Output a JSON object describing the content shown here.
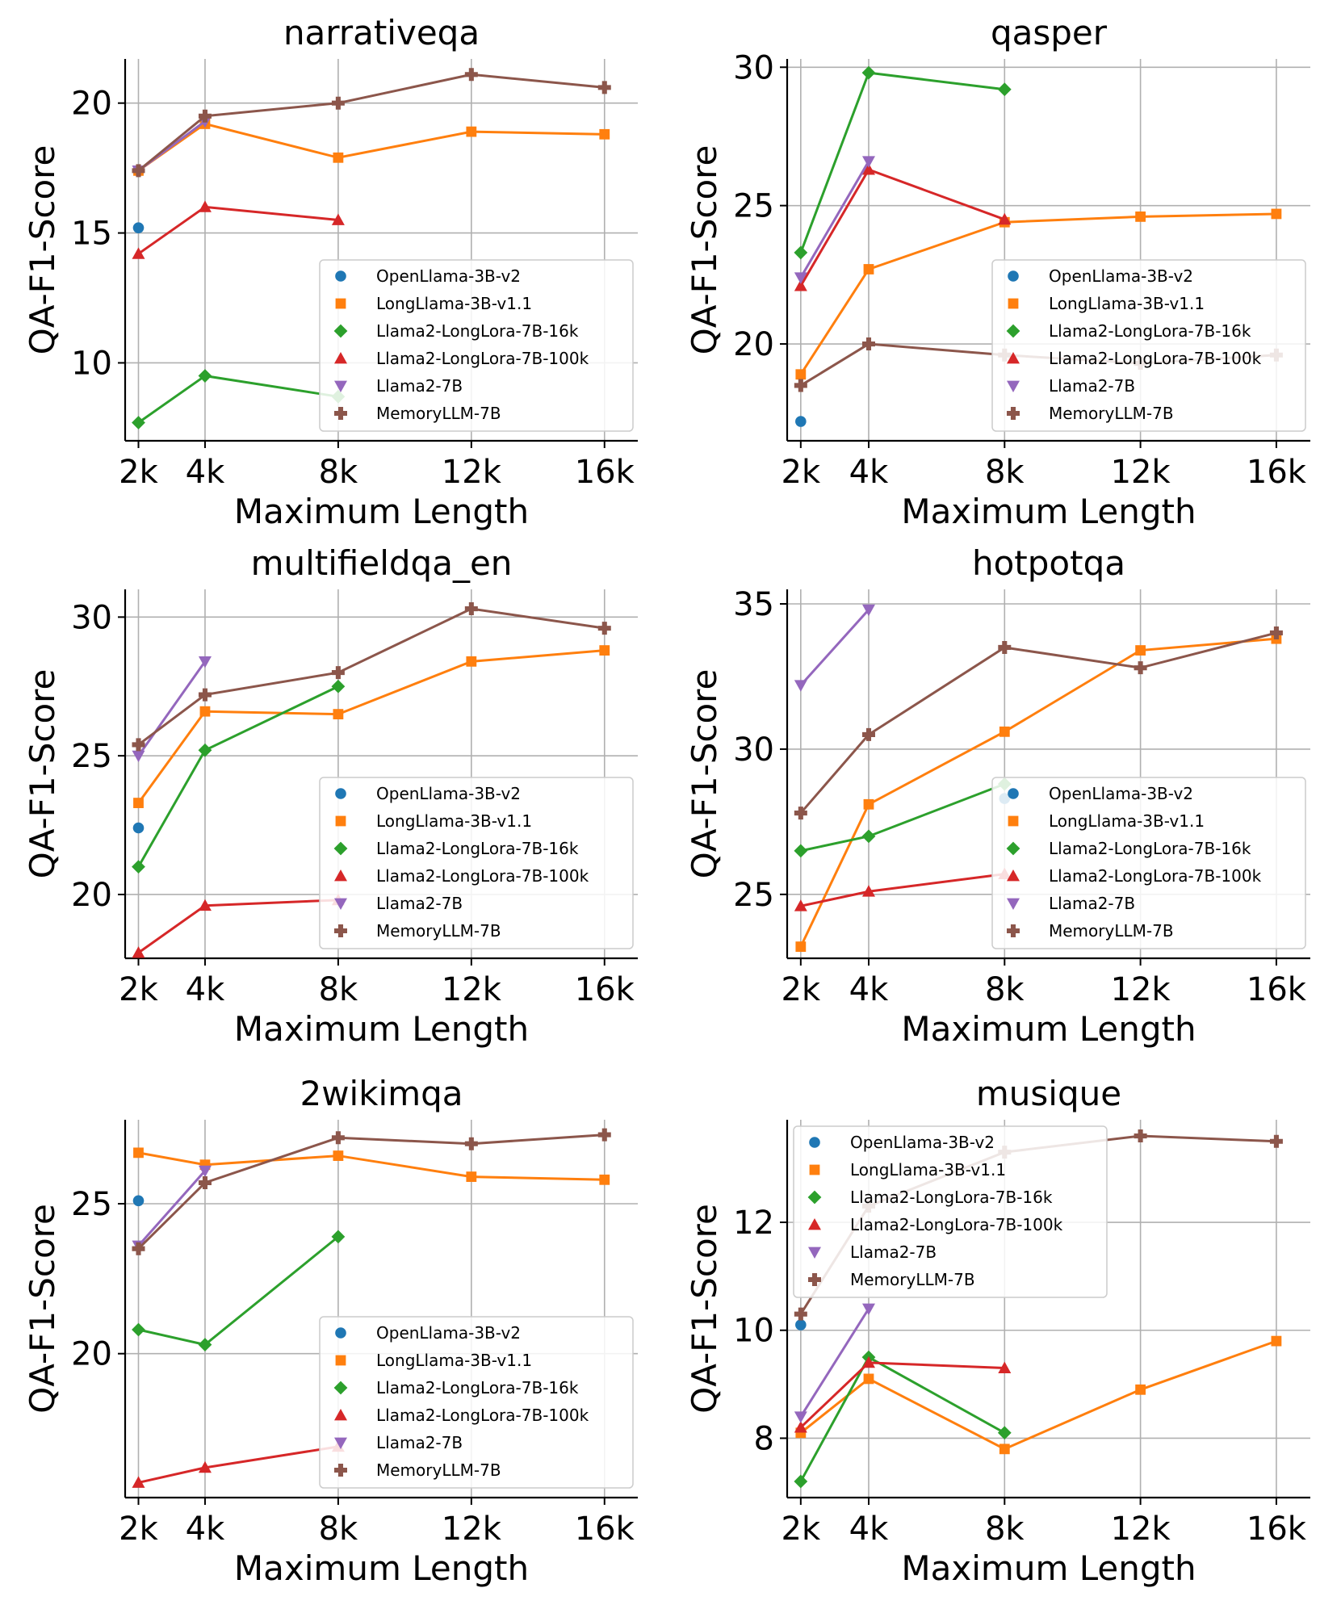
{
  "series_styles": [
    {
      "name": "OpenLlama-3B-v2",
      "color": "#1f77b4",
      "marker": "circle"
    },
    {
      "name": "LongLlama-3B-v1.1",
      "color": "#ff7f0e",
      "marker": "square"
    },
    {
      "name": "Llama2-LongLora-7B-16k",
      "color": "#2ca02c",
      "marker": "diamond"
    },
    {
      "name": "Llama2-LongLora-7B-100k",
      "color": "#d62728",
      "marker": "triangle-up"
    },
    {
      "name": "Llama2-7B",
      "color": "#9467bd",
      "marker": "triangle-down"
    },
    {
      "name": "MemoryLLM-7B",
      "color": "#8c564b",
      "marker": "plus"
    }
  ],
  "chart_data": [
    {
      "type": "line",
      "title": "narrativeqa",
      "xlabel": "Maximum Length",
      "ylabel": "QA-F1-Score",
      "xticks": [
        "2k",
        "4k",
        "8k",
        "12k",
        "16k"
      ],
      "xtick_values": [
        2,
        4,
        8,
        12,
        16
      ],
      "ylim": [
        7.0,
        21.7
      ],
      "yticks": [
        10,
        15,
        20
      ],
      "grid": true,
      "legend_position": "lower-right",
      "series": [
        {
          "name": "OpenLlama-3B-v2",
          "x": [
            2
          ],
          "y": [
            15.2
          ]
        },
        {
          "name": "LongLlama-3B-v1.1",
          "x": [
            2,
            4,
            8,
            12,
            16
          ],
          "y": [
            17.4,
            19.2,
            17.9,
            18.9,
            18.8
          ]
        },
        {
          "name": "Llama2-LongLora-7B-16k",
          "x": [
            2,
            4,
            8
          ],
          "y": [
            7.7,
            9.5,
            8.7
          ]
        },
        {
          "name": "Llama2-LongLora-7B-100k",
          "x": [
            2,
            4,
            8
          ],
          "y": [
            14.2,
            16.0,
            15.5
          ]
        },
        {
          "name": "Llama2-7B",
          "x": [
            2,
            4
          ],
          "y": [
            17.4,
            19.3
          ]
        },
        {
          "name": "MemoryLLM-7B",
          "x": [
            2,
            4,
            8,
            12,
            16
          ],
          "y": [
            17.4,
            19.5,
            20.0,
            21.1,
            20.6
          ]
        }
      ]
    },
    {
      "type": "line",
      "title": "qasper",
      "xlabel": "Maximum Length",
      "ylabel": "QA-F1-Score",
      "xticks": [
        "2k",
        "4k",
        "8k",
        "12k",
        "16k"
      ],
      "xtick_values": [
        2,
        4,
        8,
        12,
        16
      ],
      "ylim": [
        16.5,
        30.3
      ],
      "yticks": [
        20,
        25,
        30
      ],
      "grid": true,
      "legend_position": "lower-right",
      "series": [
        {
          "name": "OpenLlama-3B-v2",
          "x": [
            2
          ],
          "y": [
            17.2
          ]
        },
        {
          "name": "LongLlama-3B-v1.1",
          "x": [
            2,
            4,
            8,
            12,
            16
          ],
          "y": [
            18.9,
            22.7,
            24.4,
            24.6,
            24.7
          ]
        },
        {
          "name": "Llama2-LongLora-7B-16k",
          "x": [
            2,
            4,
            8
          ],
          "y": [
            23.3,
            29.8,
            29.2
          ]
        },
        {
          "name": "Llama2-LongLora-7B-100k",
          "x": [
            2,
            4,
            8
          ],
          "y": [
            22.1,
            26.3,
            24.5
          ]
        },
        {
          "name": "Llama2-7B",
          "x": [
            2,
            4
          ],
          "y": [
            22.4,
            26.6
          ]
        },
        {
          "name": "MemoryLLM-7B",
          "x": [
            2,
            4,
            8,
            12,
            16
          ],
          "y": [
            18.5,
            20.0,
            19.6,
            19.3,
            19.6
          ]
        }
      ]
    },
    {
      "type": "line",
      "title": "multifieldqa_en",
      "xlabel": "Maximum Length",
      "ylabel": "QA-F1-Score",
      "xticks": [
        "2k",
        "4k",
        "8k",
        "12k",
        "16k"
      ],
      "xtick_values": [
        2,
        4,
        8,
        12,
        16
      ],
      "ylim": [
        17.7,
        31.0
      ],
      "yticks": [
        20,
        25,
        30
      ],
      "grid": true,
      "legend_position": "lower-right",
      "series": [
        {
          "name": "OpenLlama-3B-v2",
          "x": [
            2
          ],
          "y": [
            22.4
          ]
        },
        {
          "name": "LongLlama-3B-v1.1",
          "x": [
            2,
            4,
            8,
            12,
            16
          ],
          "y": [
            23.3,
            26.6,
            26.5,
            28.4,
            28.8
          ]
        },
        {
          "name": "Llama2-LongLora-7B-16k",
          "x": [
            2,
            4,
            8
          ],
          "y": [
            21.0,
            25.2,
            27.5
          ]
        },
        {
          "name": "Llama2-LongLora-7B-100k",
          "x": [
            2,
            4,
            8
          ],
          "y": [
            17.9,
            19.6,
            19.8
          ]
        },
        {
          "name": "Llama2-7B",
          "x": [
            2,
            4
          ],
          "y": [
            25.0,
            28.4
          ]
        },
        {
          "name": "MemoryLLM-7B",
          "x": [
            2,
            4,
            8,
            12,
            16
          ],
          "y": [
            25.4,
            27.2,
            28.0,
            30.3,
            29.6
          ]
        }
      ]
    },
    {
      "type": "line",
      "title": "hotpotqa",
      "xlabel": "Maximum Length",
      "ylabel": "QA-F1-Score",
      "xticks": [
        "2k",
        "4k",
        "8k",
        "12k",
        "16k"
      ],
      "xtick_values": [
        2,
        4,
        8,
        12,
        16
      ],
      "ylim": [
        22.8,
        35.5
      ],
      "yticks": [
        25,
        30,
        35
      ],
      "grid": true,
      "legend_position": "lower-right",
      "series": [
        {
          "name": "OpenLlama-3B-v2",
          "x": [
            8
          ],
          "y": [
            28.3
          ]
        },
        {
          "name": "LongLlama-3B-v1.1",
          "x": [
            2,
            4,
            8,
            12,
            16
          ],
          "y": [
            23.2,
            28.1,
            30.6,
            33.4,
            33.8
          ]
        },
        {
          "name": "Llama2-LongLora-7B-16k",
          "x": [
            2,
            4,
            8
          ],
          "y": [
            26.5,
            27.0,
            28.8
          ]
        },
        {
          "name": "Llama2-LongLora-7B-100k",
          "x": [
            2,
            4,
            8
          ],
          "y": [
            24.6,
            25.1,
            25.7
          ]
        },
        {
          "name": "Llama2-7B",
          "x": [
            2,
            4
          ],
          "y": [
            32.2,
            34.8
          ]
        },
        {
          "name": "MemoryLLM-7B",
          "x": [
            2,
            4,
            8,
            12,
            16
          ],
          "y": [
            27.8,
            30.5,
            33.5,
            32.8,
            34.0
          ]
        }
      ]
    },
    {
      "type": "line",
      "title": "2wikimqa",
      "xlabel": "Maximum Length",
      "ylabel": "QA-F1-Score",
      "xticks": [
        "2k",
        "4k",
        "8k",
        "12k",
        "16k"
      ],
      "xtick_values": [
        2,
        4,
        8,
        12,
        16
      ],
      "ylim": [
        15.2,
        27.8
      ],
      "yticks": [
        20,
        25
      ],
      "grid": true,
      "legend_position": "lower-right",
      "series": [
        {
          "name": "OpenLlama-3B-v2",
          "x": [
            2
          ],
          "y": [
            25.1
          ]
        },
        {
          "name": "LongLlama-3B-v1.1",
          "x": [
            2,
            4,
            8,
            12,
            16
          ],
          "y": [
            26.7,
            26.3,
            26.6,
            25.9,
            25.8
          ]
        },
        {
          "name": "Llama2-LongLora-7B-16k",
          "x": [
            2,
            4,
            8
          ],
          "y": [
            20.8,
            20.3,
            23.9
          ]
        },
        {
          "name": "Llama2-LongLora-7B-100k",
          "x": [
            2,
            4,
            8
          ],
          "y": [
            15.7,
            16.2,
            16.9
          ]
        },
        {
          "name": "Llama2-7B",
          "x": [
            2,
            4
          ],
          "y": [
            23.6,
            26.1
          ]
        },
        {
          "name": "MemoryLLM-7B",
          "x": [
            2,
            4,
            8,
            12,
            16
          ],
          "y": [
            23.5,
            25.7,
            27.2,
            27.0,
            27.3
          ]
        }
      ]
    },
    {
      "type": "line",
      "title": "musique",
      "xlabel": "Maximum Length",
      "ylabel": "QA-F1-Score",
      "xticks": [
        "2k",
        "4k",
        "8k",
        "12k",
        "16k"
      ],
      "xtick_values": [
        2,
        4,
        8,
        12,
        16
      ],
      "ylim": [
        6.9,
        13.9
      ],
      "yticks": [
        8,
        10,
        12
      ],
      "grid": true,
      "legend_position": "upper-left",
      "series": [
        {
          "name": "OpenLlama-3B-v2",
          "x": [
            2
          ],
          "y": [
            10.1
          ]
        },
        {
          "name": "LongLlama-3B-v1.1",
          "x": [
            2,
            4,
            8,
            12,
            16
          ],
          "y": [
            8.1,
            9.1,
            7.8,
            8.9,
            9.8
          ]
        },
        {
          "name": "Llama2-LongLora-7B-16k",
          "x": [
            2,
            4,
            8
          ],
          "y": [
            7.2,
            9.5,
            8.1
          ]
        },
        {
          "name": "Llama2-LongLora-7B-100k",
          "x": [
            2,
            4,
            8
          ],
          "y": [
            8.2,
            9.4,
            9.3
          ]
        },
        {
          "name": "Llama2-7B",
          "x": [
            2,
            4
          ],
          "y": [
            8.4,
            10.4
          ]
        },
        {
          "name": "MemoryLLM-7B",
          "x": [
            2,
            4,
            8,
            12,
            16
          ],
          "y": [
            10.3,
            12.3,
            13.3,
            13.6,
            13.5
          ]
        }
      ]
    }
  ]
}
